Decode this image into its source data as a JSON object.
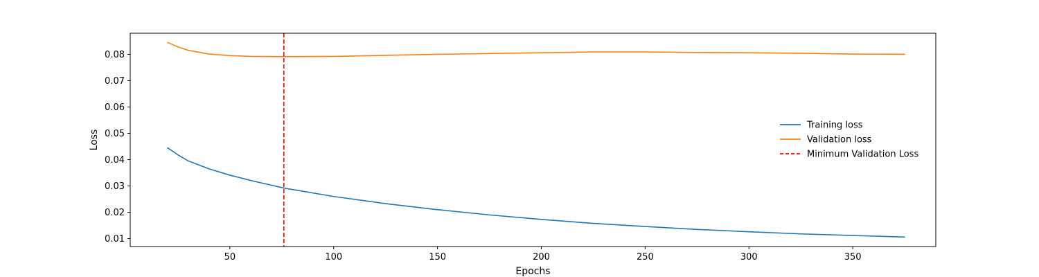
{
  "chart_data": {
    "type": "line",
    "title": "",
    "xlabel": "Epochs",
    "ylabel": "Loss",
    "xlim": [
      2,
      390
    ],
    "ylim": [
      0.007,
      0.088
    ],
    "xticks": [
      50,
      100,
      150,
      200,
      250,
      300,
      350
    ],
    "yticks": [
      0.01,
      0.02,
      0.03,
      0.04,
      0.05,
      0.06,
      0.07,
      0.08
    ],
    "ytick_labels": [
      "0.01",
      "0.02",
      "0.03",
      "0.04",
      "0.05",
      "0.06",
      "0.07",
      "0.08"
    ],
    "legend_position": "center-right",
    "series": [
      {
        "name": "Training loss",
        "color": "#1f77b4",
        "style": "solid",
        "x": [
          20,
          25,
          30,
          40,
          50,
          60,
          76,
          100,
          125,
          150,
          175,
          200,
          225,
          250,
          275,
          300,
          325,
          350,
          375
        ],
        "values": [
          0.0445,
          0.0418,
          0.0395,
          0.0365,
          0.0341,
          0.0321,
          0.0292,
          0.026,
          0.0233,
          0.021,
          0.019,
          0.0173,
          0.0158,
          0.0146,
          0.0135,
          0.0126,
          0.0118,
          0.0112,
          0.0106
        ]
      },
      {
        "name": "Validation loss",
        "color": "#ff7f0e",
        "style": "solid",
        "x": [
          20,
          25,
          30,
          40,
          50,
          60,
          76,
          100,
          125,
          150,
          175,
          200,
          225,
          250,
          275,
          300,
          325,
          350,
          375
        ],
        "values": [
          0.0845,
          0.0828,
          0.0815,
          0.0801,
          0.0795,
          0.0792,
          0.0791,
          0.0792,
          0.0796,
          0.08,
          0.0803,
          0.0806,
          0.0809,
          0.0809,
          0.0807,
          0.0806,
          0.0804,
          0.0801,
          0.08
        ]
      }
    ],
    "vlines": [
      {
        "name": "Minimum Validation Loss",
        "x": 76,
        "color": "#ff0000",
        "style": "dashed"
      }
    ]
  }
}
